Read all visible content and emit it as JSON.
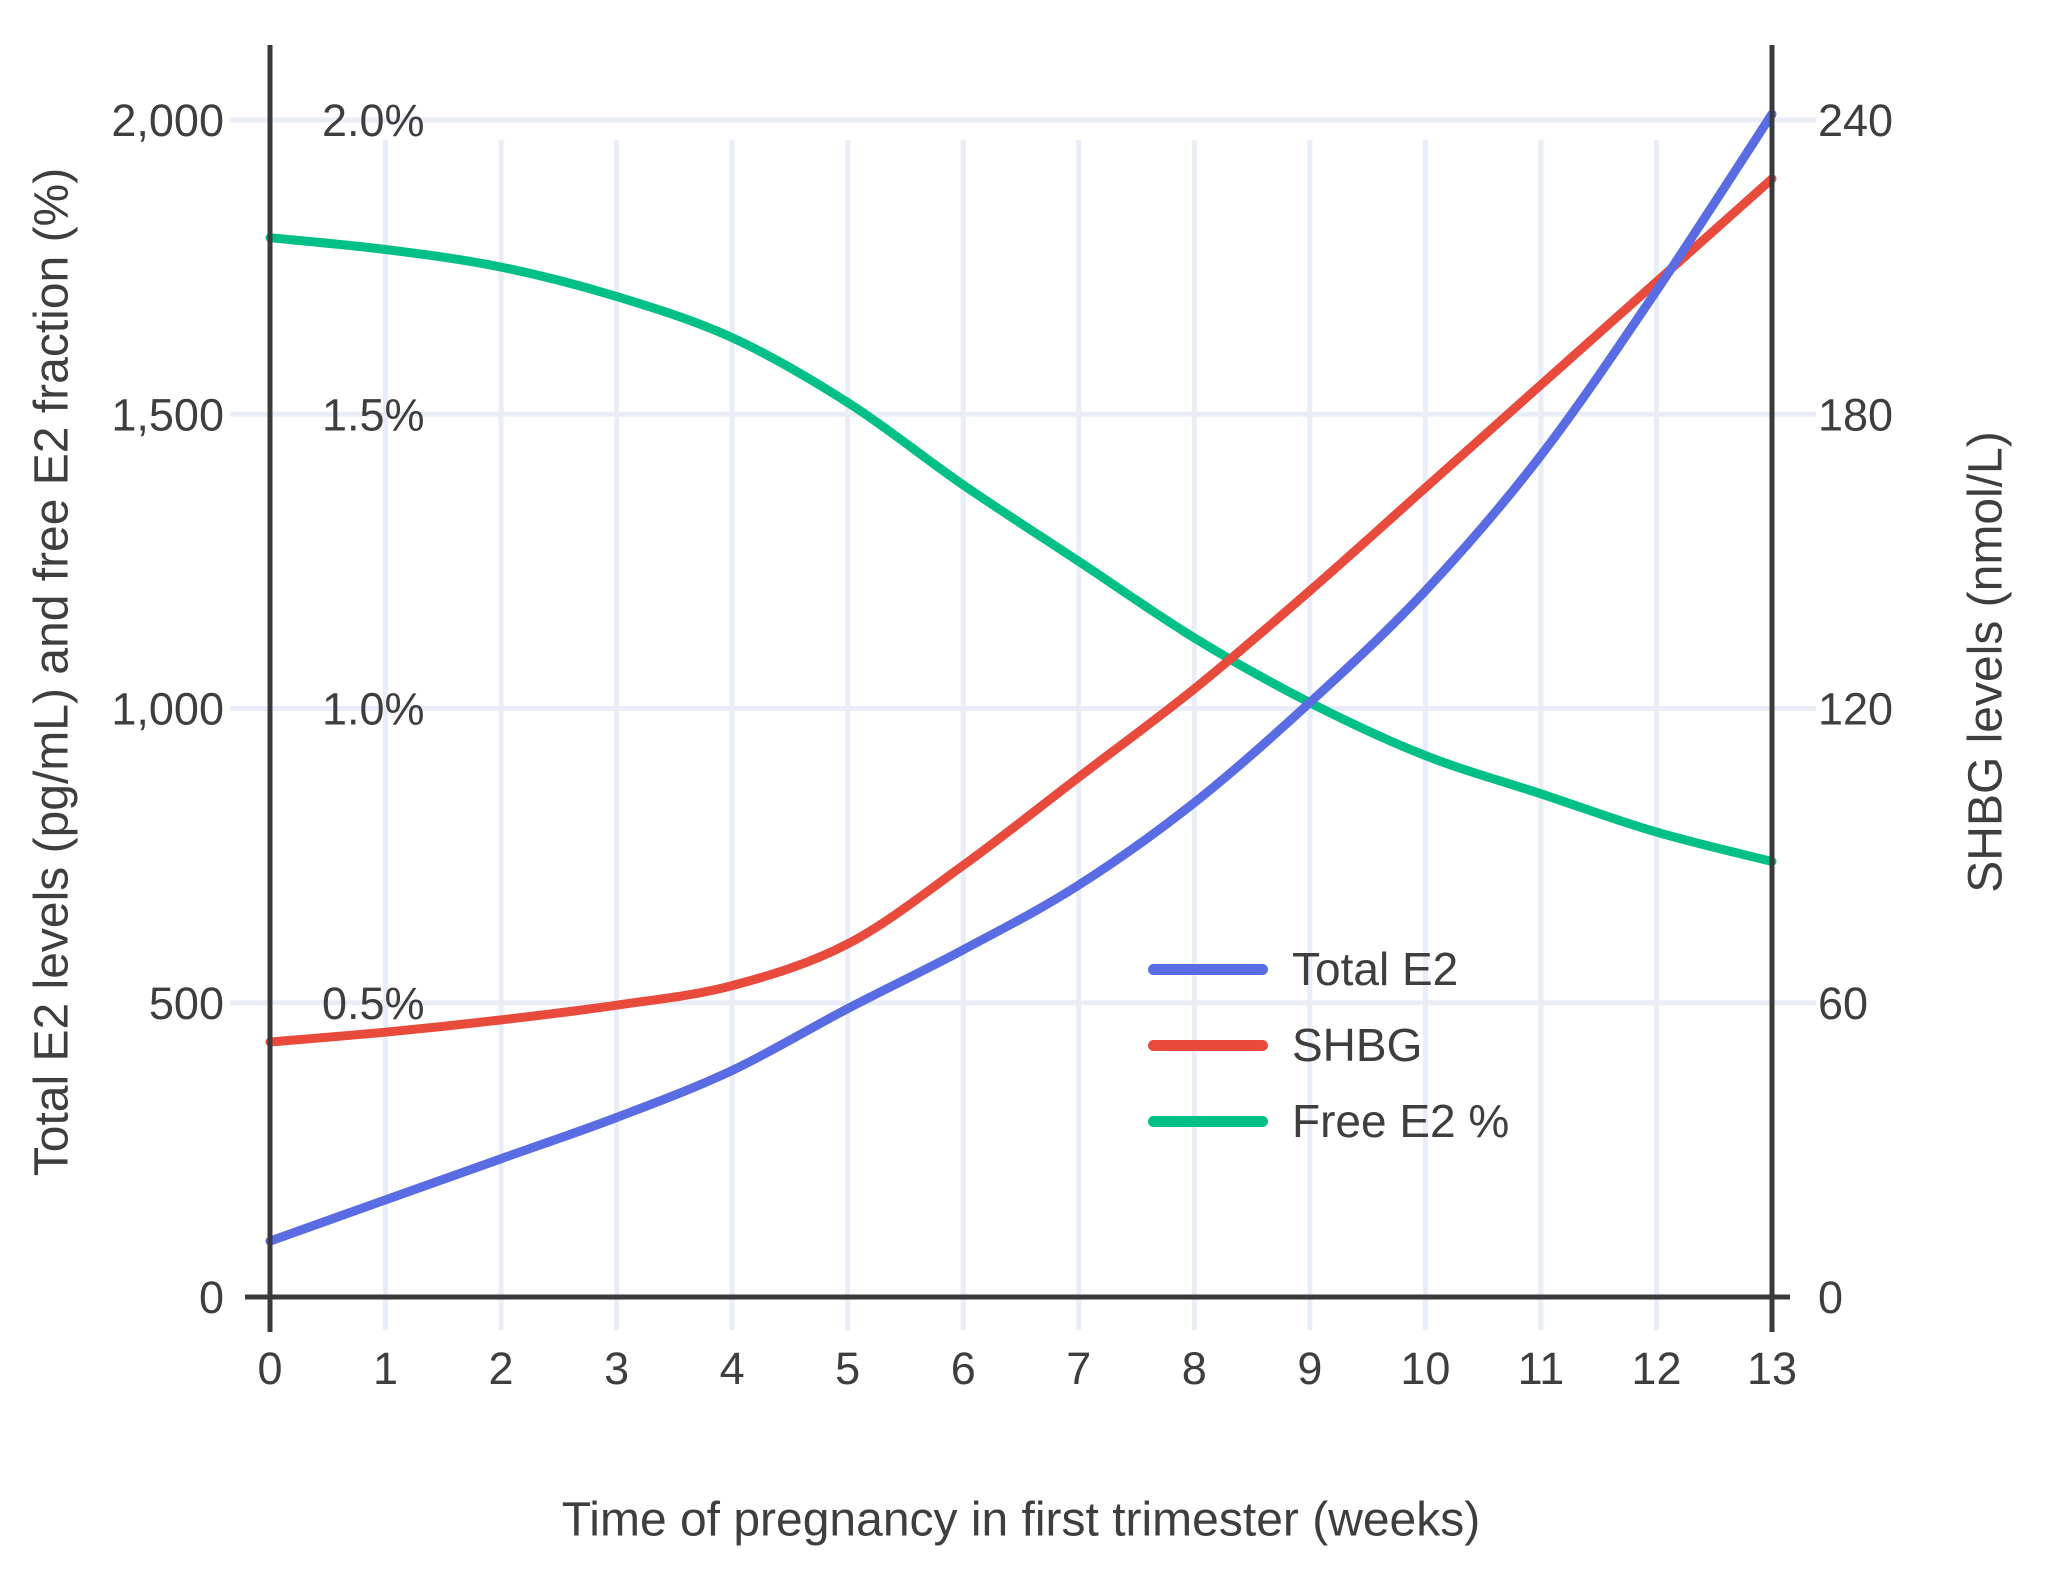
{
  "chart_data": {
    "type": "line",
    "title": "",
    "xlabel": "Time of pregnancy in first trimester (weeks)",
    "x": [
      0,
      1,
      2,
      3,
      4,
      5,
      6,
      7,
      8,
      9,
      10,
      11,
      12,
      13
    ],
    "x_tick_labels": [
      "0",
      "1",
      "2",
      "3",
      "4",
      "5",
      "6",
      "7",
      "8",
      "9",
      "10",
      "11",
      "12",
      "13"
    ],
    "left_axis": {
      "label": "Total E2 levels (pg/mL) and free E2 fraction (%)",
      "ticks": [
        {
          "v": 0,
          "label": "0"
        },
        {
          "v": 500,
          "label": "500"
        },
        {
          "v": 1000,
          "label": "1,000"
        },
        {
          "v": 1500,
          "label": "1,500"
        },
        {
          "v": 2000,
          "label": "2,000"
        }
      ],
      "range": [
        0,
        2140
      ]
    },
    "percent_ticks": [
      {
        "v": 500,
        "label": "0.5%"
      },
      {
        "v": 1000,
        "label": "1.0%"
      },
      {
        "v": 1500,
        "label": "1.5%"
      },
      {
        "v": 2000,
        "label": "2.0%"
      }
    ],
    "right_axis": {
      "label": "SHBG levels (nmol/L)",
      "ticks": [
        {
          "v": 0,
          "label": "0"
        },
        {
          "v": 60,
          "label": "60"
        },
        {
          "v": 120,
          "label": "120"
        },
        {
          "v": 180,
          "label": "180"
        },
        {
          "v": 240,
          "label": "240"
        }
      ],
      "range": [
        0,
        257
      ]
    },
    "series": [
      {
        "name": "Total E2",
        "color": "#5a6ce4",
        "axis": "left",
        "unit": "pg/mL",
        "values": [
          95,
          165,
          235,
          305,
          385,
          490,
          590,
          700,
          840,
          1010,
          1200,
          1430,
          1710,
          2010
        ]
      },
      {
        "name": "SHBG",
        "color": "#e84b3c",
        "axis": "right",
        "unit": "nmol/L",
        "values": [
          52,
          54,
          56.5,
          59.5,
          63.5,
          72,
          88,
          106,
          124,
          144,
          165,
          186,
          207,
          228
        ]
      },
      {
        "name": "Free E2 %",
        "color": "#00bf87",
        "axis": "left-percent",
        "unit": "%",
        "values": [
          1.8,
          1.78,
          1.75,
          1.7,
          1.63,
          1.52,
          1.38,
          1.25,
          1.12,
          1.01,
          0.92,
          0.855,
          0.79,
          0.74
        ]
      }
    ],
    "legend": {
      "position": "inside-right",
      "items": [
        "Total E2",
        "SHBG",
        "Free E2 %"
      ]
    },
    "grid": true,
    "grid_color": "#e8edf8",
    "axis_color": "#3a3a3a",
    "text_color": "#3e3e3e"
  }
}
